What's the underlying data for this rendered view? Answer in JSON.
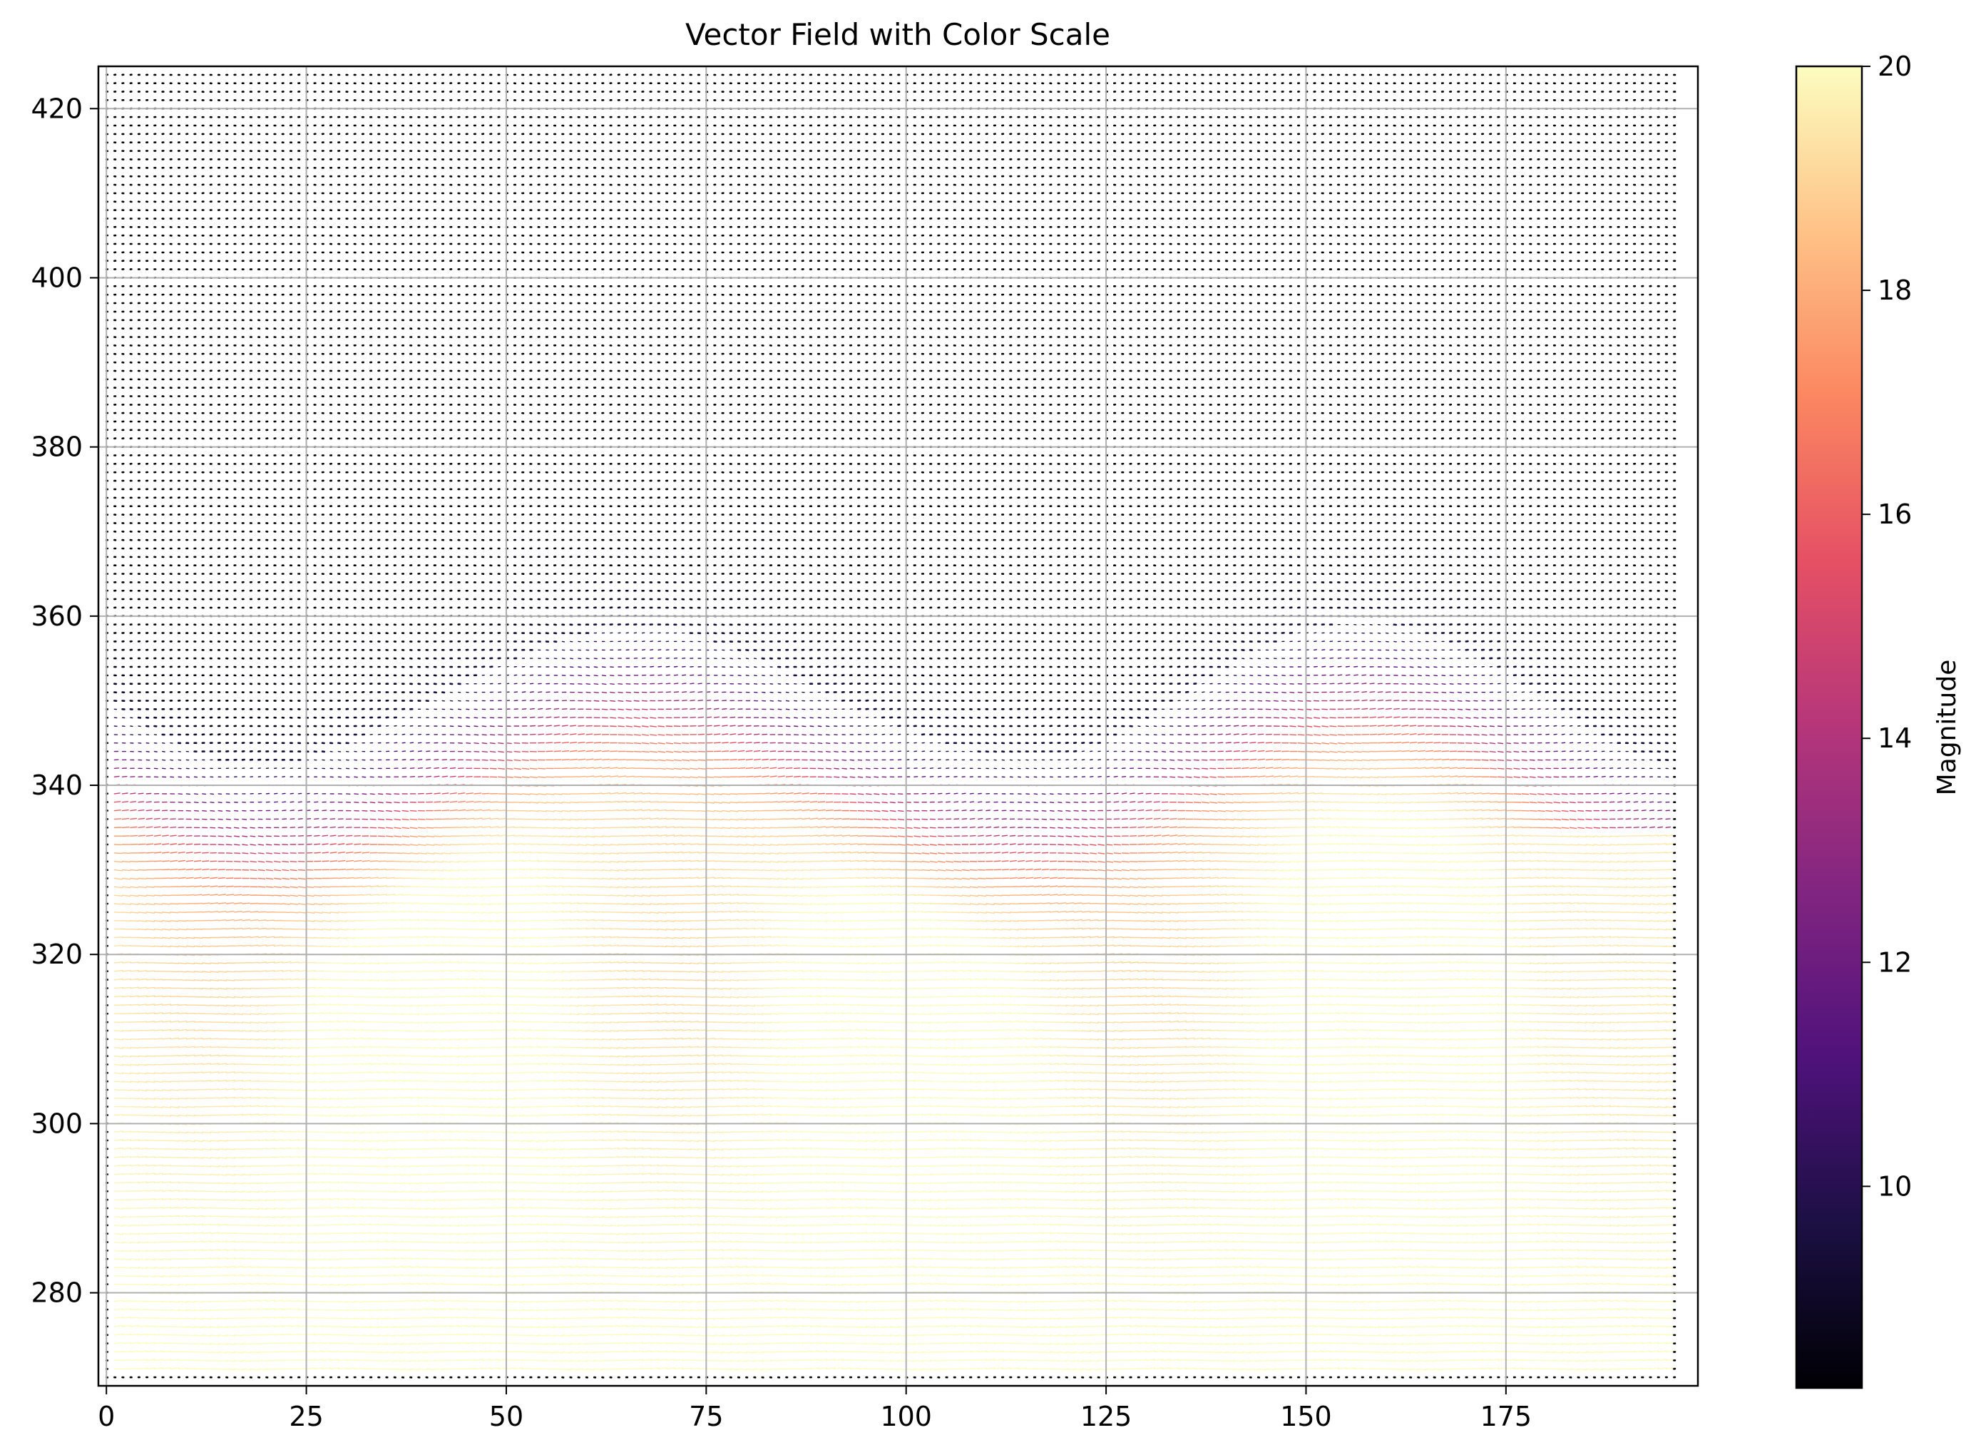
{
  "chart_data": {
    "type": "quiver",
    "title": "Vector Field with Color Scale",
    "xlabel": "",
    "ylabel": "",
    "xlim": [
      -1,
      199
    ],
    "ylim": [
      269,
      425
    ],
    "x_ticks": [
      0,
      25,
      50,
      75,
      100,
      125,
      150,
      175
    ],
    "x_tick_labels": [
      "0",
      "25",
      "50",
      "75",
      "100",
      "125",
      "150",
      "175"
    ],
    "y_ticks": [
      280,
      300,
      320,
      340,
      360,
      380,
      400,
      420
    ],
    "y_tick_labels": [
      "280",
      "300",
      "320",
      "340",
      "360",
      "380",
      "400",
      "420"
    ],
    "grid": true,
    "colormap": "magma",
    "colormap_stops": [
      "#000004",
      "#1c1044",
      "#4f127b",
      "#812581",
      "#b5367a",
      "#e55064",
      "#fb8761",
      "#fec287",
      "#fcfdbf"
    ],
    "grid_points": {
      "x_start": 0,
      "x_end": 196,
      "x_step": 1,
      "y_start": 270,
      "y_end": 424,
      "y_step": 1
    },
    "magnitude_range": [
      8.2,
      20
    ],
    "field_description_regions": {
      "low_magnitude_above_y": 345,
      "high_magnitude_below_y": 330
    },
    "colorbar": {
      "label": "Magnitude",
      "range": [
        8.2,
        20
      ],
      "ticks": [
        10,
        12,
        14,
        16,
        18,
        20
      ],
      "tick_labels": [
        "10",
        "12",
        "14",
        "16",
        "18",
        "20"
      ]
    }
  }
}
